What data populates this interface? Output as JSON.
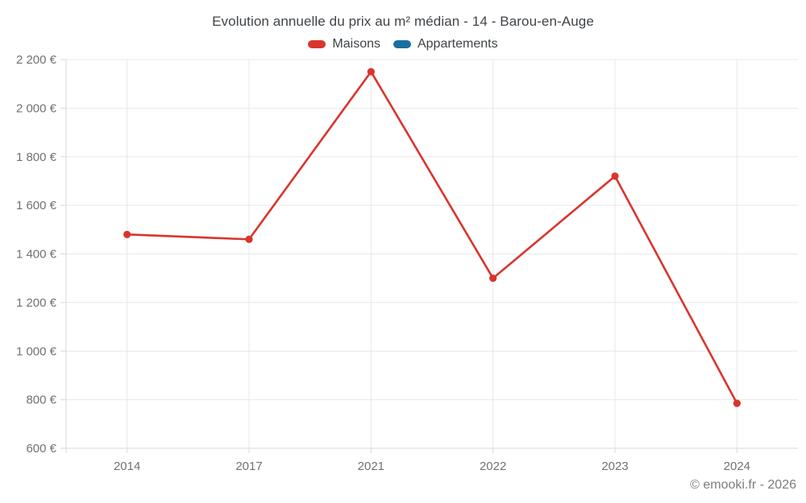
{
  "title": "Evolution annuelle du prix au m² médian - 14 - Barou-en-Auge",
  "legend": {
    "items": [
      {
        "label": "Maisons",
        "color": "#d8352e"
      },
      {
        "label": "Appartements",
        "color": "#1a6fa2"
      }
    ]
  },
  "footer": {
    "copyright": "© emooki.fr - 2026"
  },
  "chart_data": {
    "type": "line",
    "title": "Evolution annuelle du prix au m² médian - 14 - Barou-en-Auge",
    "categories": [
      "2014",
      "2017",
      "2021",
      "2022",
      "2023",
      "2024"
    ],
    "series": [
      {
        "name": "Maisons",
        "color": "#d8352e",
        "values": [
          1480,
          1460,
          2150,
          1300,
          1720,
          785
        ]
      },
      {
        "name": "Appartements",
        "color": "#1a6fa2",
        "values": []
      }
    ],
    "xlabel": "",
    "ylabel": "",
    "ylim": [
      600,
      2200
    ],
    "ytick_step": 200,
    "ytick_labels": [
      "600 €",
      "800 €",
      "1 000 €",
      "1 200 €",
      "1 400 €",
      "1 600 €",
      "1 800 €",
      "2 000 €",
      "2 200 €"
    ],
    "grid": true,
    "legend_position": "top",
    "styles": {
      "grid_color": "#e8e8e8",
      "axis_color": "#d7d7d7",
      "tick_label_color": "#6e7276",
      "line_width": 2.6,
      "point_radius": 4.6
    }
  }
}
